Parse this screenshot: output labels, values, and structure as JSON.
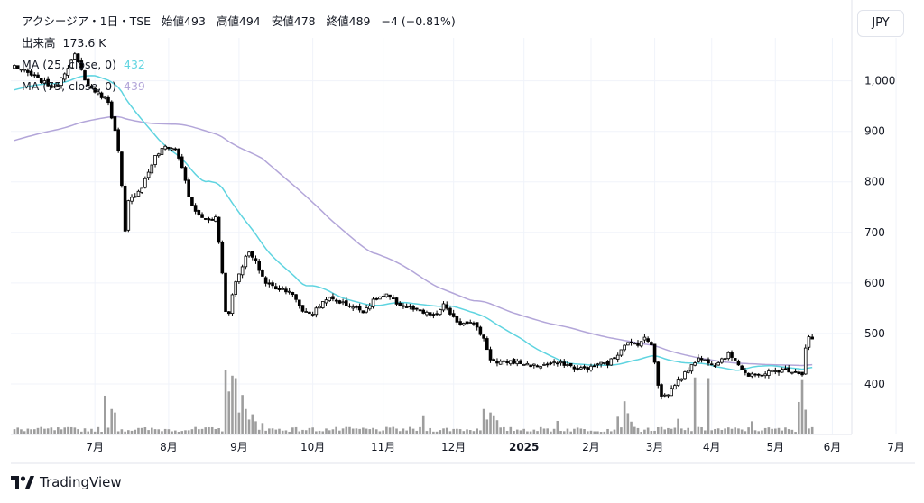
{
  "legend": {
    "symbol": "アクシージア・1日・TSE",
    "open_label": "始値",
    "open": "493",
    "high_label": "高値",
    "high": "494",
    "low_label": "安値",
    "low": "478",
    "close_label": "終値",
    "close": "489",
    "change": "−4 (−0.81%)",
    "volume_label": "出来高",
    "volume": "173.6 K",
    "ma1_label": "MA (25, close, 0)",
    "ma1_value": "432",
    "ma2_label": "MA (75, close, 0)",
    "ma2_value": "439"
  },
  "currency": "JPY",
  "brand": "TradingView",
  "colors": {
    "ma1": "#5fd4e0",
    "ma2": "#b3a6d9",
    "up": "#ffffff",
    "down": "#000000",
    "volume": "#9e9e9e"
  },
  "chart_data": {
    "type": "candlestick",
    "yticks": [
      "1,000",
      "900",
      "800",
      "700",
      "600",
      "500",
      "400"
    ],
    "ytick_values": [
      1000,
      900,
      800,
      700,
      600,
      500,
      400
    ],
    "xticks": [
      "7月",
      "8月",
      "9月",
      "10月",
      "11月",
      "12月",
      "2025",
      "2月",
      "3月",
      "4月",
      "5月",
      "6月",
      "7月"
    ],
    "xtick_index": [
      24,
      46,
      67,
      89,
      110,
      131,
      152,
      172,
      191,
      208,
      227,
      244,
      263
    ],
    "price_range": [
      300,
      1085
    ],
    "volume_max": 185,
    "ma_periods": [
      25,
      75
    ],
    "seed": 7,
    "price_path": [
      [
        0,
        1030
      ],
      [
        12,
        985
      ],
      [
        18,
        1050
      ],
      [
        22,
        990
      ],
      [
        28,
        960
      ],
      [
        30,
        900
      ],
      [
        31,
        860
      ],
      [
        32,
        790
      ],
      [
        33,
        700
      ],
      [
        34,
        760
      ],
      [
        38,
        790
      ],
      [
        42,
        850
      ],
      [
        45,
        870
      ],
      [
        48,
        865
      ],
      [
        50,
        830
      ],
      [
        52,
        770
      ],
      [
        54,
        740
      ],
      [
        57,
        725
      ],
      [
        60,
        730
      ],
      [
        61,
        680
      ],
      [
        62,
        620
      ],
      [
        63,
        545
      ],
      [
        64,
        540
      ],
      [
        65,
        580
      ],
      [
        67,
        620
      ],
      [
        69,
        650
      ],
      [
        70,
        660
      ],
      [
        72,
        640
      ],
      [
        75,
        600
      ],
      [
        78,
        590
      ],
      [
        82,
        585
      ],
      [
        86,
        545
      ],
      [
        89,
        540
      ],
      [
        93,
        570
      ],
      [
        96,
        565
      ],
      [
        100,
        555
      ],
      [
        104,
        545
      ],
      [
        108,
        570
      ],
      [
        111,
        575
      ],
      [
        114,
        560
      ],
      [
        118,
        550
      ],
      [
        122,
        540
      ],
      [
        126,
        535
      ],
      [
        128,
        560
      ],
      [
        130,
        535
      ],
      [
        133,
        520
      ],
      [
        136,
        525
      ],
      [
        138,
        510
      ],
      [
        140,
        490
      ],
      [
        142,
        450
      ],
      [
        144,
        440
      ],
      [
        148,
        445
      ],
      [
        152,
        440
      ],
      [
        156,
        435
      ],
      [
        160,
        440
      ],
      [
        164,
        440
      ],
      [
        168,
        430
      ],
      [
        172,
        432
      ],
      [
        174,
        440
      ],
      [
        177,
        440
      ],
      [
        180,
        460
      ],
      [
        182,
        480
      ],
      [
        186,
        480
      ],
      [
        188,
        490
      ],
      [
        190,
        480
      ],
      [
        191,
        445
      ],
      [
        192,
        400
      ],
      [
        193,
        375
      ],
      [
        195,
        380
      ],
      [
        197,
        400
      ],
      [
        200,
        420
      ],
      [
        202,
        440
      ],
      [
        204,
        450
      ],
      [
        207,
        445
      ],
      [
        209,
        440
      ],
      [
        211,
        450
      ],
      [
        213,
        458
      ],
      [
        215,
        450
      ],
      [
        217,
        430
      ],
      [
        219,
        415
      ],
      [
        222,
        418
      ],
      [
        226,
        425
      ],
      [
        230,
        428
      ],
      [
        233,
        425
      ],
      [
        235,
        420
      ],
      [
        236,
        470
      ],
      [
        237,
        493
      ],
      [
        238,
        489
      ]
    ],
    "volume_events": [
      [
        27,
        108
      ],
      [
        29,
        70
      ],
      [
        30,
        60
      ],
      [
        63,
        182
      ],
      [
        64,
        120
      ],
      [
        65,
        165
      ],
      [
        66,
        158
      ],
      [
        67,
        60
      ],
      [
        68,
        110
      ],
      [
        69,
        70
      ],
      [
        70,
        40
      ],
      [
        71,
        55
      ],
      [
        72,
        35
      ],
      [
        74,
        30
      ],
      [
        122,
        52
      ],
      [
        140,
        70
      ],
      [
        141,
        40
      ],
      [
        142,
        60
      ],
      [
        143,
        52
      ],
      [
        144,
        38
      ],
      [
        162,
        36
      ],
      [
        180,
        48
      ],
      [
        182,
        92
      ],
      [
        183,
        58
      ],
      [
        184,
        34
      ],
      [
        198,
        42
      ],
      [
        203,
        160
      ],
      [
        207,
        158
      ],
      [
        220,
        35
      ],
      [
        234,
        90
      ],
      [
        235,
        155
      ],
      [
        236,
        68
      ]
    ]
  }
}
